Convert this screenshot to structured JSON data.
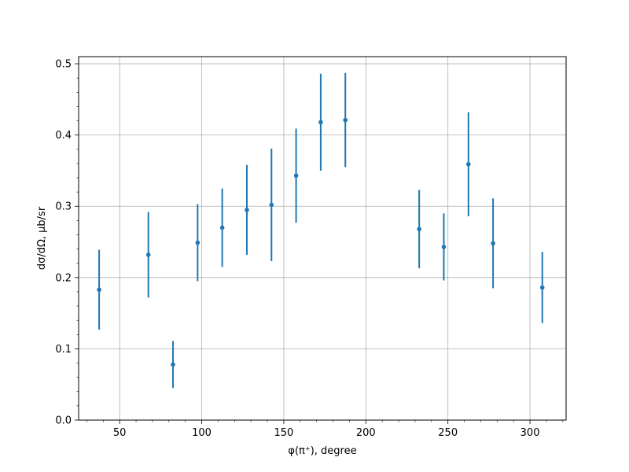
{
  "chart_data": {
    "type": "scatter",
    "xlabel": "φ(π⁺), degree",
    "ylabel": "dσ/dΩ, μb/sr",
    "xlim": [
      25,
      322
    ],
    "ylim": [
      0,
      0.51
    ],
    "x_ticks": [
      50,
      100,
      150,
      200,
      250,
      300
    ],
    "y_ticks": [
      0.0,
      0.1,
      0.2,
      0.3,
      0.4,
      0.5
    ],
    "grid": true,
    "marker_color": "#1f77b4",
    "series": [
      {
        "points": [
          {
            "x": 37.5,
            "y": 0.183,
            "err": 0.056
          },
          {
            "x": 67.5,
            "y": 0.232,
            "err": 0.06
          },
          {
            "x": 82.5,
            "y": 0.078,
            "err": 0.033
          },
          {
            "x": 97.5,
            "y": 0.249,
            "err": 0.054
          },
          {
            "x": 112.5,
            "y": 0.27,
            "err": 0.055
          },
          {
            "x": 127.5,
            "y": 0.295,
            "err": 0.063
          },
          {
            "x": 142.5,
            "y": 0.302,
            "err": 0.079
          },
          {
            "x": 157.5,
            "y": 0.343,
            "err": 0.066
          },
          {
            "x": 172.5,
            "y": 0.418,
            "err": 0.068
          },
          {
            "x": 187.5,
            "y": 0.421,
            "err": 0.066
          },
          {
            "x": 232.5,
            "y": 0.268,
            "err": 0.055
          },
          {
            "x": 247.5,
            "y": 0.243,
            "err": 0.047
          },
          {
            "x": 262.5,
            "y": 0.359,
            "err": 0.073
          },
          {
            "x": 277.5,
            "y": 0.248,
            "err": 0.063
          },
          {
            "x": 307.5,
            "y": 0.186,
            "err": 0.05
          }
        ]
      }
    ]
  }
}
